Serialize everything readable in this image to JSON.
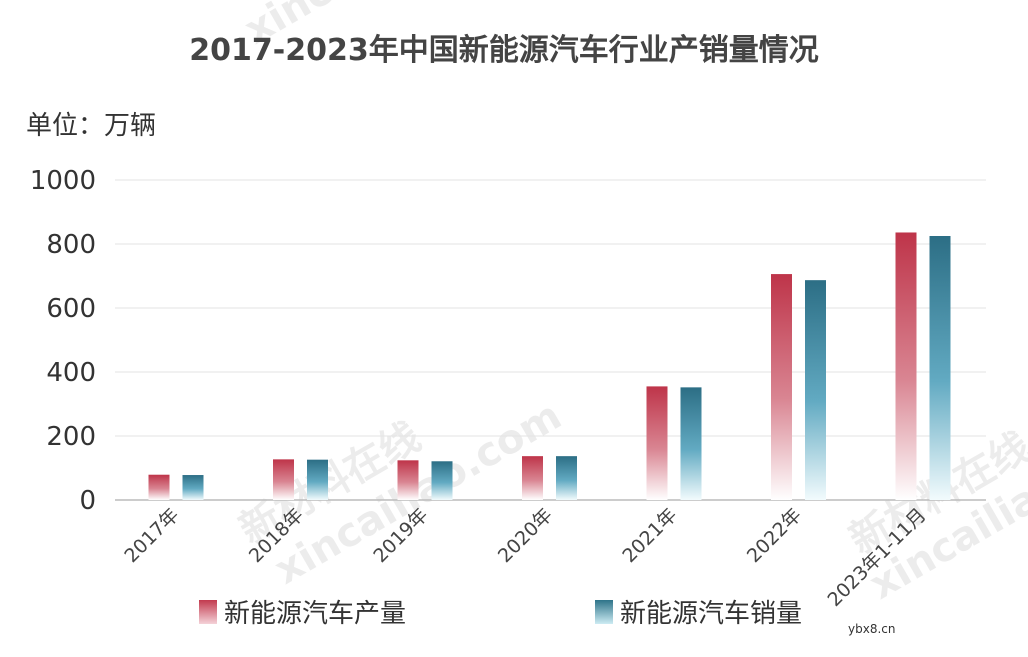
{
  "colors": {
    "production": "#c23a4e",
    "sales": "#2e7389",
    "sales_light": "#7cc7dc",
    "grid": "#e3e3e3",
    "axis": "#bbbbbb"
  },
  "watermark": {
    "brand_en": "xincailiao.com",
    "brand_cn": "新材料在线",
    "site": "ybx8.cn"
  },
  "chart_data": {
    "type": "bar",
    "title": "2017-2023年中国新能源汽车行业产销量情况",
    "unit_label": "单位：万辆",
    "categories": [
      "2017年",
      "2018年",
      "2019年",
      "2020年",
      "2021年",
      "2022年",
      "2023年1-11月"
    ],
    "series": [
      {
        "name": "新能源汽车产量",
        "values": [
          79,
          127,
          124,
          137,
          355,
          706,
          836
        ]
      },
      {
        "name": "新能源汽车销量",
        "values": [
          78,
          126,
          121,
          137,
          352,
          687,
          825
        ]
      }
    ],
    "ylim": [
      0,
      1000
    ],
    "yticks": [
      0,
      200,
      400,
      600,
      800,
      1000
    ],
    "ytick_labels": [
      "0",
      "200",
      "400",
      "600",
      "800",
      "1000"
    ],
    "grid": true,
    "legend_position": "bottom"
  }
}
